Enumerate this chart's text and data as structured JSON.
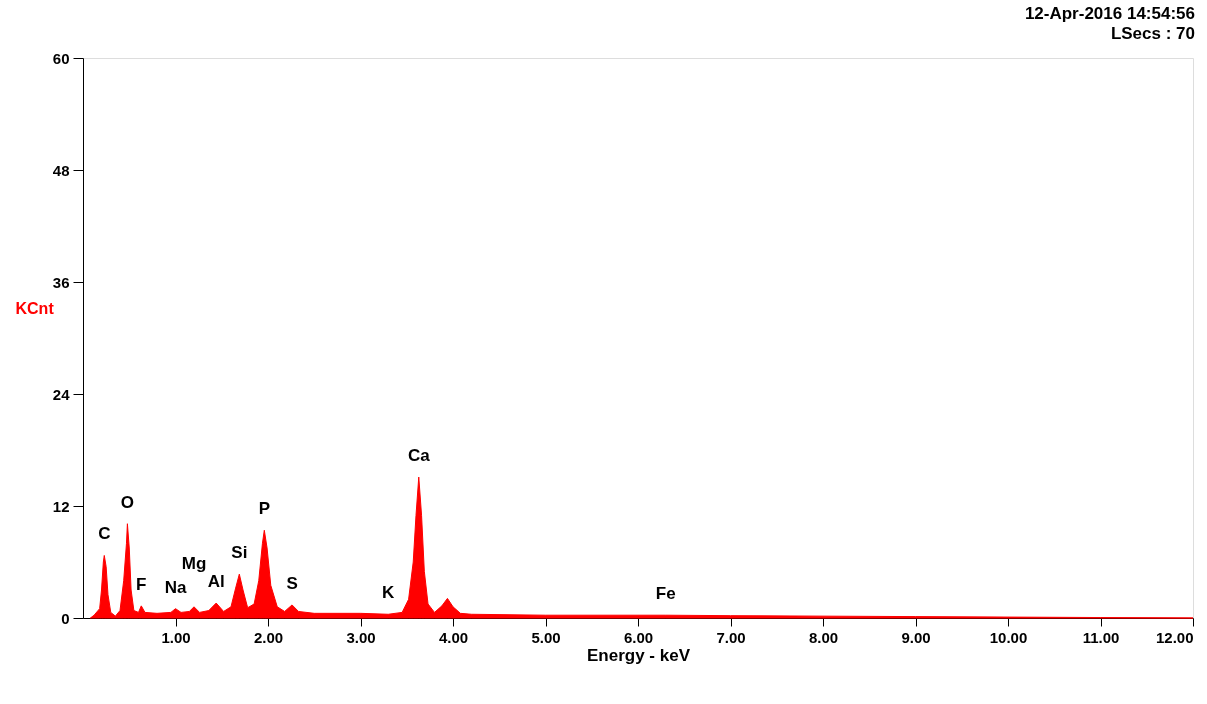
{
  "chart_data": {
    "type": "area",
    "title": "12-Apr-2016 14:54:56",
    "subtitle": "LSecs : 70",
    "xlabel": "Energy - keV",
    "ylabel": "KCnt",
    "x": [
      0.08,
      0.12,
      0.18,
      0.2,
      0.22,
      0.23,
      0.25,
      0.27,
      0.3,
      0.35,
      0.4,
      0.44,
      0.47,
      0.48,
      0.5,
      0.52,
      0.55,
      0.6,
      0.63,
      0.67,
      0.8,
      0.95,
      1.0,
      1.06,
      1.15,
      1.2,
      1.26,
      1.36,
      1.44,
      1.52,
      1.6,
      1.65,
      1.69,
      1.73,
      1.78,
      1.85,
      1.9,
      1.94,
      1.96,
      1.99,
      2.03,
      2.1,
      2.18,
      2.26,
      2.33,
      2.5,
      3.0,
      3.3,
      3.45,
      3.52,
      3.57,
      3.6,
      3.63,
      3.66,
      3.69,
      3.73,
      3.8,
      3.88,
      3.94,
      4.0,
      4.08,
      4.2,
      5.0,
      6.0,
      6.3,
      7.0,
      8.0,
      9.0,
      10.0,
      11.0,
      12.0
    ],
    "series": [
      {
        "color": "#ff0000",
        "values": [
          0,
          0.3,
          1.0,
          3,
          6,
          6.7,
          5.5,
          2.5,
          0.6,
          0.2,
          0.8,
          4,
          8,
          10.1,
          7.5,
          3,
          0.8,
          0.6,
          1.3,
          0.6,
          0.5,
          0.6,
          1.0,
          0.6,
          0.7,
          1.2,
          0.6,
          0.8,
          1.6,
          0.7,
          1.2,
          3.2,
          4.7,
          3,
          1.1,
          1.5,
          4,
          8,
          9.4,
          7.5,
          3.5,
          1.2,
          0.7,
          1.4,
          0.7,
          0.5,
          0.5,
          0.4,
          0.6,
          2,
          6,
          11,
          15.1,
          11,
          5,
          1.5,
          0.6,
          1.3,
          2.1,
          1.2,
          0.5,
          0.4,
          0.3,
          0.3,
          0.3,
          0.25,
          0.2,
          0.15,
          0.1,
          0.05,
          0
        ]
      }
    ],
    "xlim": [
      0,
      12
    ],
    "ylim": [
      0,
      60
    ],
    "xticks": [
      {
        "value": 1,
        "label": "1.00"
      },
      {
        "value": 2,
        "label": "2.00"
      },
      {
        "value": 3,
        "label": "3.00"
      },
      {
        "value": 4,
        "label": "4.00"
      },
      {
        "value": 5,
        "label": "5.00"
      },
      {
        "value": 6,
        "label": "6.00"
      },
      {
        "value": 7,
        "label": "7.00"
      },
      {
        "value": 8,
        "label": "8.00"
      },
      {
        "value": 9,
        "label": "9.00"
      },
      {
        "value": 10,
        "label": "10.00"
      },
      {
        "value": 11,
        "label": "11.00"
      },
      {
        "value": 12,
        "label": "12.00"
      }
    ],
    "yticks": [
      0,
      12,
      24,
      36,
      48,
      60
    ],
    "grid": false,
    "annotations": [
      {
        "text": "C",
        "x": 0.23,
        "y": 6.7
      },
      {
        "text": "O",
        "x": 0.48,
        "y": 10.1
      },
      {
        "text": "F",
        "x": 0.63,
        "y": 1.3
      },
      {
        "text": "Na",
        "x": 1.0,
        "y": 1.0
      },
      {
        "text": "Mg",
        "x": 1.2,
        "y": 1.2
      },
      {
        "text": "Al",
        "x": 1.44,
        "y": 1.6
      },
      {
        "text": "Si",
        "x": 1.69,
        "y": 4.7
      },
      {
        "text": "P",
        "x": 1.96,
        "y": 9.4
      },
      {
        "text": "S",
        "x": 2.26,
        "y": 1.4
      },
      {
        "text": "K",
        "x": 3.3,
        "y": 0.4
      },
      {
        "text": "Ca",
        "x": 3.63,
        "y": 15.1
      },
      {
        "text": "Fe",
        "x": 6.3,
        "y": 0.3
      }
    ]
  }
}
